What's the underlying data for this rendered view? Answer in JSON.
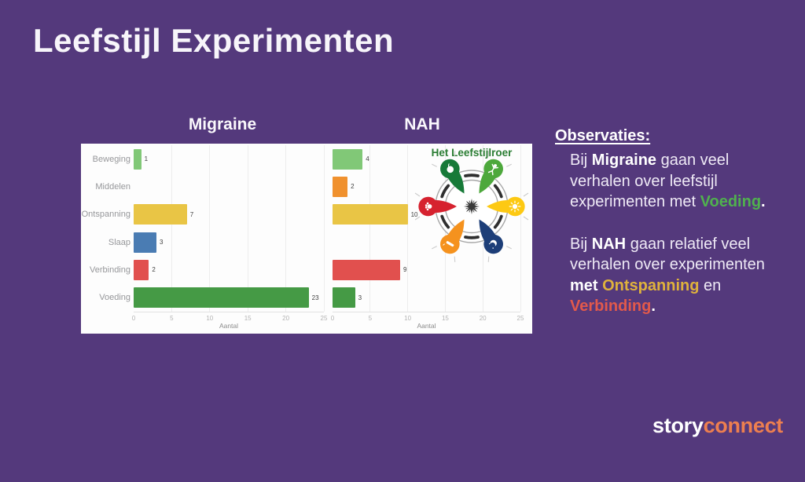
{
  "slide": {
    "title": "Leefstijl Experimenten",
    "background_color": "#54397c"
  },
  "chart_data": [
    {
      "type": "bar",
      "orientation": "horizontal",
      "title": "Migraine",
      "categories": [
        "Beweging",
        "Middelen",
        "Ontspanning",
        "Slaap",
        "Verbinding",
        "Voeding"
      ],
      "values": [
        1,
        0,
        7,
        3,
        2,
        23
      ],
      "bar_colors": [
        "#81c877",
        "#f0912e",
        "#e9c545",
        "#4a7cb3",
        "#e1504e",
        "#459a45"
      ],
      "xlabel": "Aantal",
      "xlim": [
        0,
        25
      ],
      "xticks": [
        0,
        5,
        10,
        15,
        20,
        25
      ],
      "grid": true
    },
    {
      "type": "bar",
      "orientation": "horizontal",
      "title": "NAH",
      "categories": [
        "Beweging",
        "Middelen",
        "Ontspanning",
        "Slaap",
        "Verbinding",
        "Voeding"
      ],
      "values": [
        4,
        2,
        10,
        0,
        9,
        3
      ],
      "bar_colors": [
        "#81c877",
        "#f0912e",
        "#e9c545",
        "#4a7cb3",
        "#e1504e",
        "#459a45"
      ],
      "xlabel": "Aantal",
      "xlim": [
        0,
        25
      ],
      "xticks": [
        0,
        5,
        10,
        15,
        20,
        25
      ],
      "grid": true
    }
  ],
  "roer": {
    "title": "Het Leefstijlroer",
    "title_color": "#2a7d33",
    "spokes": [
      {
        "name": "Voeding",
        "color": "#177a38",
        "icon": "apple-icon"
      },
      {
        "name": "Beweging",
        "color": "#4da83c",
        "icon": "exercise-person-icon"
      },
      {
        "name": "Ontspanning",
        "color": "#fdc913",
        "icon": "sun-icon"
      },
      {
        "name": "Slaap",
        "color": "#1d3e78",
        "icon": "moon-icon"
      },
      {
        "name": "Middelen",
        "color": "#f5921e",
        "icon": "cigarette-icon"
      },
      {
        "name": "Verbinding",
        "color": "#d6222f",
        "icon": "hand-icon"
      }
    ]
  },
  "observations": {
    "heading": "Observaties:",
    "p1": {
      "l1a": "Bij ",
      "l1b": "Migraine",
      "l1c": " gaan veel",
      "l2": "verhalen over leefstijl",
      "l3a": "experimenten met ",
      "l3b": "Voeding",
      "l3c": "."
    },
    "p2": {
      "l1a": "Bij ",
      "l1b": "NAH",
      "l1c": " gaan relatief veel",
      "l2": "verhalen over experimenten",
      "l3a": "met ",
      "l3b": "Ontspanning",
      "l3c": " en",
      "l4a": "Verbinding",
      "l4b": "."
    },
    "highlight_colors": {
      "voeding": "#50b14e",
      "ontspanning": "#dfb23c",
      "verbinding": "#e2594b"
    }
  },
  "logo": {
    "part1": "story",
    "part2": "connect",
    "accent_color": "#ed7f4f"
  }
}
